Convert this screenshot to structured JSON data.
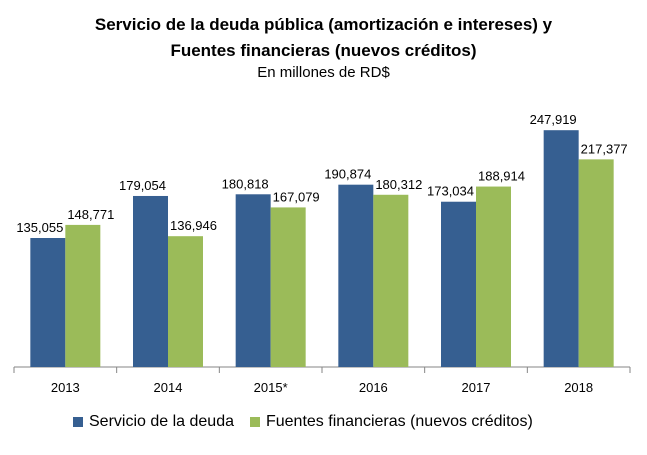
{
  "chart_data": {
    "type": "bar",
    "title_line1": "Servicio de la deuda pública (amortización  e intereses) y",
    "title_line2": "Fuentes financieras  (nuevos créditos)",
    "subtitle": "En millones de RD$",
    "categories": [
      "2013",
      "2014",
      "2015*",
      "2016",
      "2017",
      "2018"
    ],
    "series": [
      {
        "name": "Servicio de la deuda",
        "color": "#365F91",
        "values": [
          135055,
          179054,
          180818,
          190874,
          173034,
          247919
        ],
        "labels": [
          "135,055",
          "179,054",
          "180,818",
          "190,874",
          "173,034",
          "247,919"
        ]
      },
      {
        "name": "Fuentes financieras (nuevos créditos)",
        "color": "#9BBB59",
        "values": [
          148771,
          136946,
          167079,
          180312,
          188914,
          217377
        ],
        "labels": [
          "148,771",
          "136,946",
          "167,079",
          "180,312",
          "188,914",
          "217,377"
        ]
      }
    ],
    "ylim": [
      0,
      290000
    ],
    "legend_position": "bottom",
    "grid": false
  }
}
